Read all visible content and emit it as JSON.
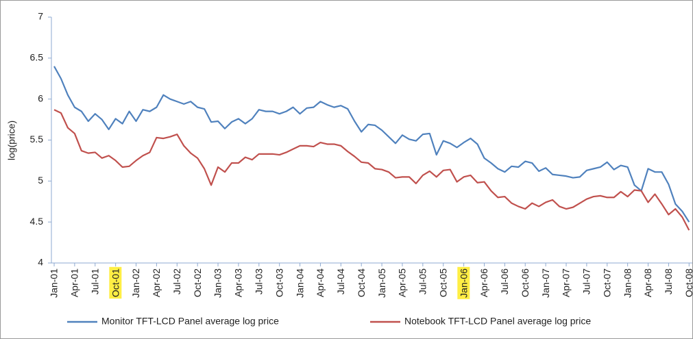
{
  "chart_data": {
    "type": "line",
    "y_label": "log(price)",
    "categories": [
      "Jan-01",
      null,
      null,
      "Apr-01",
      null,
      null,
      "Jul-01",
      null,
      null,
      "Oct-01",
      null,
      null,
      "Jan-02",
      null,
      null,
      "Apr-02",
      null,
      null,
      "Jul-02",
      null,
      null,
      "Oct-02",
      null,
      null,
      "Jan-03",
      null,
      null,
      "Apr-03",
      null,
      null,
      "Jul-03",
      null,
      null,
      "Oct-03",
      null,
      null,
      "Jan-04",
      null,
      null,
      "Apr-04",
      null,
      null,
      "Jul-04",
      null,
      null,
      "Oct-04",
      null,
      null,
      "Jan-05",
      null,
      null,
      "Apr-05",
      null,
      null,
      "Jul-05",
      null,
      null,
      "Oct-05",
      null,
      null,
      "Jan-06",
      null,
      null,
      "Apr-06",
      null,
      null,
      "Jul-06",
      null,
      null,
      "Oct-06",
      null,
      null,
      "Jan-07",
      null,
      null,
      "Apr-07",
      null,
      null,
      "Jul-07",
      null,
      null,
      "Oct-07",
      null,
      null,
      "Jan-08",
      null,
      null,
      "Apr-08",
      null,
      null,
      "Jul-08",
      null,
      null,
      "Oct-08"
    ],
    "highlighted": [
      9,
      60
    ],
    "highlight_color": "#ffee44",
    "series": [
      {
        "name": "Monitor TFT-LCD Panel average log price",
        "color": "#4f81bd",
        "values": [
          6.4,
          6.25,
          6.05,
          5.9,
          5.85,
          5.73,
          5.82,
          5.75,
          5.63,
          5.76,
          5.7,
          5.85,
          5.73,
          5.87,
          5.85,
          5.9,
          6.05,
          6.0,
          5.97,
          5.94,
          5.97,
          5.9,
          5.88,
          5.72,
          5.73,
          5.64,
          5.72,
          5.76,
          5.7,
          5.76,
          5.87,
          5.85,
          5.85,
          5.82,
          5.85,
          5.9,
          5.82,
          5.89,
          5.9,
          5.97,
          5.93,
          5.9,
          5.92,
          5.88,
          5.73,
          5.6,
          5.69,
          5.68,
          5.62,
          5.54,
          5.46,
          5.56,
          5.51,
          5.49,
          5.57,
          5.58,
          5.32,
          5.49,
          5.46,
          5.41,
          5.47,
          5.52,
          5.45,
          5.28,
          5.22,
          5.15,
          5.11,
          5.18,
          5.17,
          5.24,
          5.22,
          5.12,
          5.16,
          5.08,
          5.07,
          5.06,
          5.04,
          5.05,
          5.13,
          5.15,
          5.17,
          5.23,
          5.14,
          5.19,
          5.17,
          4.95,
          4.88,
          5.15,
          5.11,
          5.11,
          4.96,
          4.72,
          4.63,
          4.5
        ]
      },
      {
        "name": "Notebook TFT-LCD Panel average log price",
        "color": "#c0504d",
        "values": [
          5.87,
          5.83,
          5.65,
          5.58,
          5.37,
          5.34,
          5.35,
          5.28,
          5.31,
          5.25,
          5.17,
          5.18,
          5.25,
          5.31,
          5.35,
          5.53,
          5.52,
          5.54,
          5.57,
          5.43,
          5.34,
          5.28,
          5.15,
          4.95,
          5.17,
          5.11,
          5.22,
          5.22,
          5.29,
          5.26,
          5.33,
          5.33,
          5.33,
          5.32,
          5.35,
          5.39,
          5.43,
          5.43,
          5.42,
          5.47,
          5.45,
          5.45,
          5.43,
          5.36,
          5.3,
          5.23,
          5.22,
          5.15,
          5.14,
          5.11,
          5.04,
          5.05,
          5.05,
          4.97,
          5.07,
          5.12,
          5.05,
          5.13,
          5.14,
          4.99,
          5.05,
          5.07,
          4.98,
          4.99,
          4.88,
          4.8,
          4.81,
          4.73,
          4.69,
          4.66,
          4.73,
          4.69,
          4.74,
          4.77,
          4.69,
          4.66,
          4.68,
          4.73,
          4.78,
          4.81,
          4.82,
          4.8,
          4.8,
          4.87,
          4.81,
          4.89,
          4.88,
          4.74,
          4.84,
          4.72,
          4.59,
          4.66,
          4.56,
          4.4
        ]
      }
    ],
    "ylim": [
      4,
      7
    ],
    "yticks": [
      4,
      4.5,
      5,
      5.5,
      6,
      6.5,
      7
    ],
    "grid": false
  }
}
